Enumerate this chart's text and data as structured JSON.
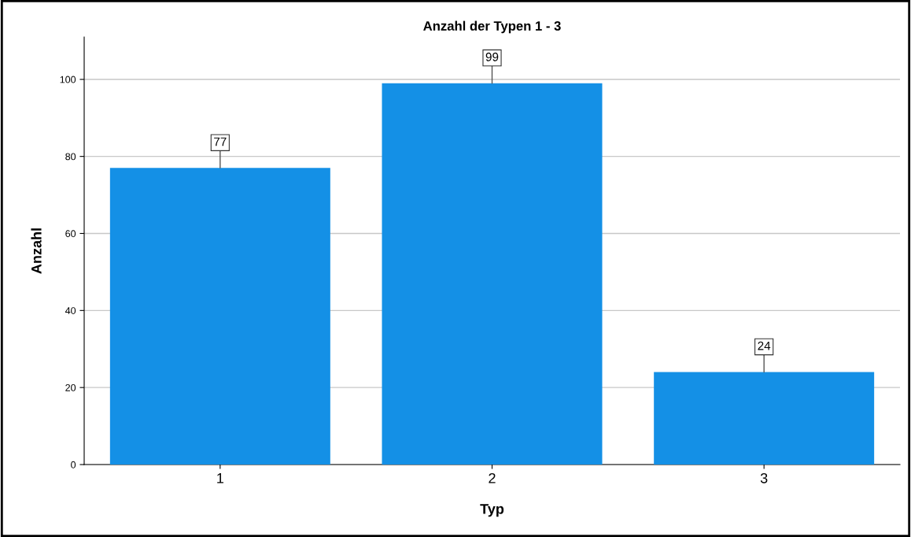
{
  "chart_data": {
    "type": "bar",
    "title": "Anzahl der Typen 1 - 3",
    "xlabel": "Typ",
    "ylabel": "Anzahl",
    "categories": [
      "1",
      "2",
      "3"
    ],
    "values": [
      77,
      99,
      24
    ],
    "color": "#1490e6",
    "ylim": [
      0,
      111
    ],
    "yticks": [
      0,
      20,
      40,
      60,
      80,
      100
    ],
    "grid": "y",
    "data_labels": true
  }
}
